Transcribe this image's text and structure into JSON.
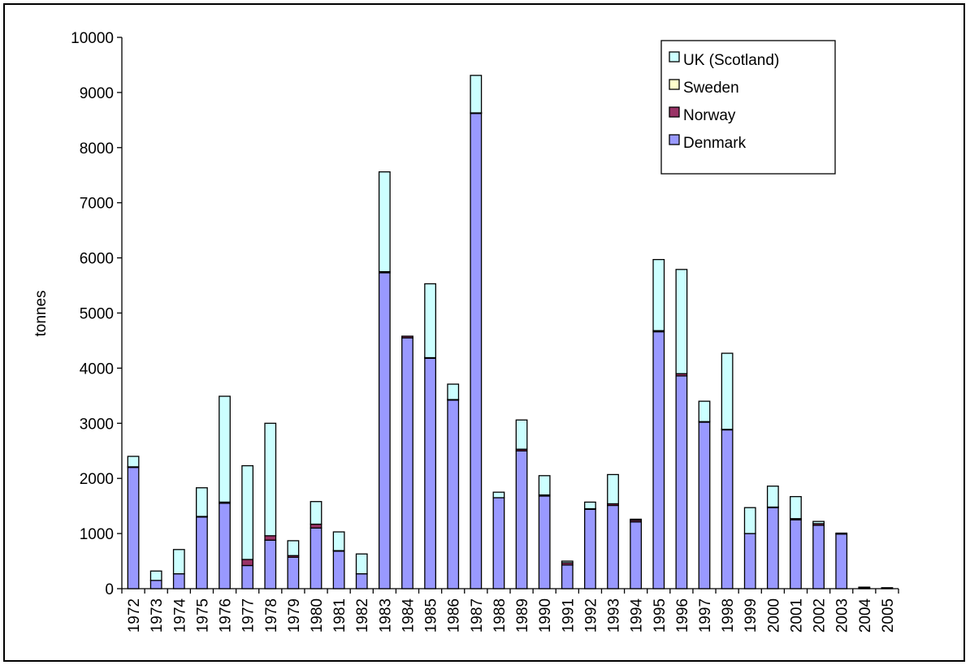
{
  "chart_data": {
    "type": "bar",
    "stacked": true,
    "title": "",
    "xlabel": "",
    "ylabel": "tonnes",
    "ylim": [
      0,
      10000
    ],
    "yticks": [
      0,
      1000,
      2000,
      3000,
      4000,
      5000,
      6000,
      7000,
      8000,
      9000,
      10000
    ],
    "grid": false,
    "legend_position": "top-right",
    "categories": [
      "1972",
      "1973",
      "1974",
      "1975",
      "1976",
      "1977",
      "1978",
      "1979",
      "1980",
      "1981",
      "1982",
      "1983",
      "1984",
      "1985",
      "1986",
      "1987",
      "1988",
      "1989",
      "1990",
      "1991",
      "1992",
      "1993",
      "1994",
      "1995",
      "1996",
      "1997",
      "1998",
      "1999",
      "2000",
      "2001",
      "2002",
      "2003",
      "2004",
      "2005"
    ],
    "series": [
      {
        "name": "Denmark",
        "color": "#9999ff",
        "values": [
          2200,
          150,
          270,
          1300,
          1550,
          420,
          880,
          570,
          1100,
          680,
          270,
          5730,
          4550,
          4180,
          3420,
          8620,
          1650,
          2500,
          1680,
          430,
          1440,
          1510,
          1210,
          4660,
          3860,
          3020,
          2880,
          1000,
          1470,
          1250,
          1150,
          990,
          0,
          0
        ]
      },
      {
        "name": "Norway",
        "color": "#993366",
        "values": [
          10,
          0,
          0,
          10,
          20,
          110,
          80,
          30,
          70,
          10,
          0,
          20,
          30,
          10,
          10,
          10,
          0,
          30,
          20,
          40,
          10,
          30,
          30,
          20,
          40,
          10,
          10,
          0,
          10,
          20,
          30,
          10,
          10,
          0
        ]
      },
      {
        "name": "Sweden",
        "color": "#ffffcc",
        "values": [
          0,
          0,
          0,
          0,
          0,
          0,
          0,
          0,
          0,
          0,
          0,
          0,
          0,
          0,
          0,
          0,
          0,
          0,
          0,
          0,
          0,
          0,
          0,
          0,
          0,
          0,
          0,
          0,
          0,
          0,
          0,
          0,
          0,
          0
        ]
      },
      {
        "name": "UK (Scotland)",
        "color": "#ccffff",
        "values": [
          190,
          170,
          440,
          520,
          1920,
          1700,
          2040,
          270,
          410,
          340,
          360,
          1810,
          0,
          1340,
          280,
          680,
          100,
          530,
          350,
          30,
          120,
          530,
          20,
          1290,
          1890,
          370,
          1380,
          470,
          380,
          400,
          40,
          0,
          10,
          10
        ]
      }
    ],
    "legend_order": [
      "UK (Scotland)",
      "Sweden",
      "Norway",
      "Denmark"
    ]
  }
}
